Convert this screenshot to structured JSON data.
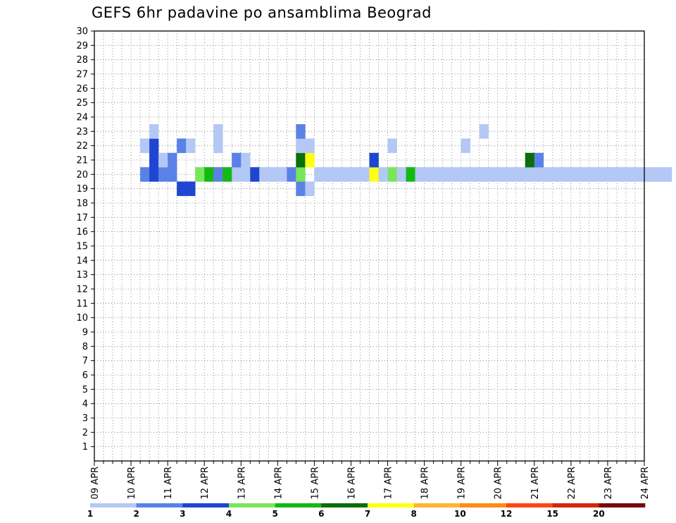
{
  "title": "GEFS 6hr padavine po ansamblima Beograd",
  "chart_data": {
    "type": "heatmap",
    "title": "GEFS 6hr padavine po ansamblima Beograd",
    "xlabel": "",
    "ylabel": "",
    "x_tick_labels": [
      "09 APR",
      "10 APR",
      "11 APR",
      "12 APR",
      "13 APR",
      "14 APR",
      "15 APR",
      "16 APR",
      "17 APR",
      "18 APR",
      "19 APR",
      "20 APR",
      "21 APR",
      "22 APR",
      "23 APR",
      "24 APR"
    ],
    "y_tick_labels": [
      "1",
      "2",
      "3",
      "4",
      "5",
      "6",
      "7",
      "8",
      "9",
      "10",
      "11",
      "12",
      "13",
      "14",
      "15",
      "16",
      "17",
      "18",
      "19",
      "20",
      "21",
      "22",
      "23",
      "24",
      "25",
      "26",
      "27",
      "28",
      "29",
      "30"
    ],
    "ylim": [
      0,
      30
    ],
    "x_steps_per_day": 4,
    "grid": true,
    "legend": {
      "position": "bottom",
      "levels": [
        "1",
        "2",
        "3",
        "4",
        "5",
        "6",
        "7",
        "8",
        "10",
        "12",
        "15",
        "20"
      ],
      "colors": [
        "#b4c8f5",
        "#5a82e6",
        "#1e46d2",
        "#78e65a",
        "#14b914",
        "#0a6e0a",
        "#ffff14",
        "#ffb432",
        "#ff8c14",
        "#ff4614",
        "#d2280a",
        "#780a0a"
      ]
    },
    "cells": [
      [
        5,
        20,
        1
      ],
      [
        5,
        22,
        0
      ],
      [
        6,
        20,
        2
      ],
      [
        6,
        21,
        2
      ],
      [
        6,
        22,
        2
      ],
      [
        6,
        23,
        0
      ],
      [
        7,
        20,
        1
      ],
      [
        7,
        21,
        0
      ],
      [
        8,
        20,
        1
      ],
      [
        8,
        21,
        1
      ],
      [
        9,
        19,
        2
      ],
      [
        9,
        22,
        1
      ],
      [
        10,
        19,
        2
      ],
      [
        10,
        22,
        0
      ],
      [
        11,
        20,
        3
      ],
      [
        12,
        20,
        4
      ],
      [
        13,
        20,
        1
      ],
      [
        13,
        22,
        0
      ],
      [
        13,
        23,
        0
      ],
      [
        14,
        20,
        4
      ],
      [
        15,
        20,
        0
      ],
      [
        15,
        21,
        1
      ],
      [
        16,
        20,
        0
      ],
      [
        16,
        21,
        0
      ],
      [
        17,
        20,
        2
      ],
      [
        18,
        20,
        0
      ],
      [
        19,
        20,
        0
      ],
      [
        20,
        20,
        0
      ],
      [
        21,
        20,
        1
      ],
      [
        22,
        19,
        1
      ],
      [
        22,
        20,
        3
      ],
      [
        22,
        21,
        5
      ],
      [
        22,
        22,
        0
      ],
      [
        22,
        23,
        1
      ],
      [
        23,
        19,
        0
      ],
      [
        23,
        21,
        6
      ],
      [
        23,
        22,
        0
      ],
      [
        24,
        20,
        0
      ],
      [
        25,
        20,
        0
      ],
      [
        26,
        20,
        0
      ],
      [
        27,
        20,
        0
      ],
      [
        28,
        20,
        0
      ],
      [
        29,
        20,
        0
      ],
      [
        30,
        20,
        6
      ],
      [
        30,
        21,
        2
      ],
      [
        31,
        20,
        0
      ],
      [
        32,
        20,
        3
      ],
      [
        32,
        22,
        0
      ],
      [
        33,
        20,
        0
      ],
      [
        34,
        20,
        4
      ],
      [
        35,
        20,
        0
      ],
      [
        36,
        20,
        0
      ],
      [
        37,
        20,
        0
      ],
      [
        38,
        20,
        0
      ],
      [
        39,
        20,
        0
      ],
      [
        40,
        20,
        0
      ],
      [
        40,
        22,
        0
      ],
      [
        41,
        20,
        0
      ],
      [
        42,
        20,
        0
      ],
      [
        42,
        23,
        0
      ],
      [
        43,
        20,
        0
      ],
      [
        44,
        20,
        0
      ],
      [
        45,
        20,
        0
      ],
      [
        46,
        20,
        0
      ],
      [
        47,
        20,
        0
      ],
      [
        47,
        21,
        5
      ],
      [
        48,
        20,
        0
      ],
      [
        48,
        21,
        1
      ],
      [
        49,
        20,
        0
      ],
      [
        50,
        20,
        0
      ],
      [
        51,
        20,
        0
      ],
      [
        52,
        20,
        0
      ],
      [
        53,
        20,
        0
      ],
      [
        54,
        20,
        0
      ],
      [
        55,
        20,
        0
      ],
      [
        56,
        20,
        0
      ],
      [
        57,
        20,
        0
      ],
      [
        58,
        20,
        0
      ],
      [
        59,
        20,
        0
      ],
      [
        60,
        20,
        0
      ],
      [
        61,
        20,
        0
      ],
      [
        62,
        20,
        0
      ]
    ],
    "cells_note": "row: ensemble member (y), col: 6-hour step from 09 APR 00Z (x), value index into legend.colors"
  }
}
